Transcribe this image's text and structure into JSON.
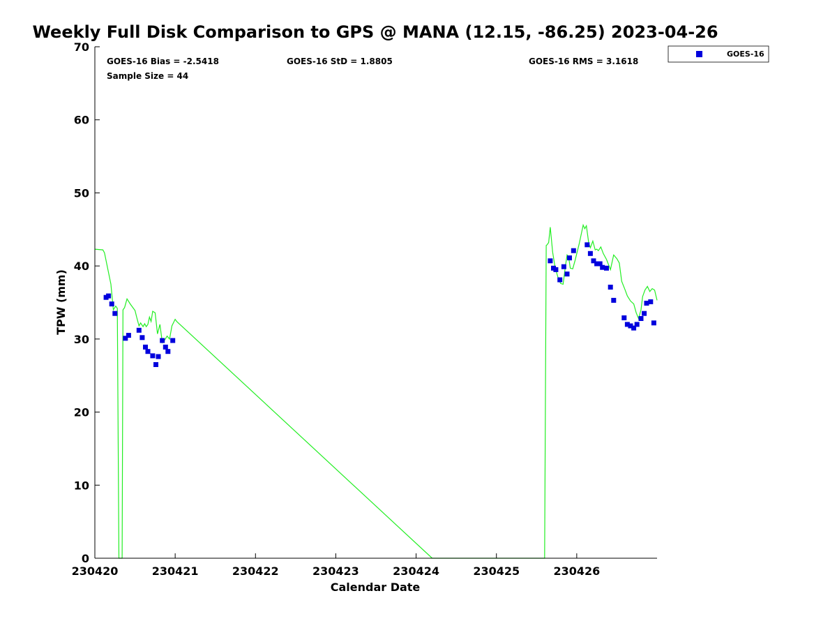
{
  "chart_data": {
    "type": "scatter",
    "title": "Weekly Full Disk Comparison to GPS @ MANA (12.15, -86.25) 2023-04-26",
    "xlabel": "Calendar Date",
    "ylabel": "TPW (mm)",
    "xlim": [
      0,
      7
    ],
    "ylim": [
      0,
      70
    ],
    "x_ticks": [
      0,
      1,
      2,
      3,
      4,
      5,
      6
    ],
    "x_tick_labels": [
      "230420",
      "230421",
      "230422",
      "230423",
      "230424",
      "230425",
      "230426"
    ],
    "y_ticks": [
      0,
      10,
      20,
      30,
      40,
      50,
      60,
      70
    ],
    "y_tick_labels": [
      "0",
      "10",
      "20",
      "30",
      "40",
      "50",
      "60",
      "70"
    ],
    "grid": false,
    "legend_position": "outside-top-right",
    "stats": {
      "bias": "GOES-16 Bias = -2.5418",
      "std": "GOES-16 StD = 1.8805",
      "rms": "GOES-16 RMS = 3.1618",
      "sample": "Sample Size = 44"
    },
    "series": [
      {
        "name": "GOES-16",
        "color": "#0000dd",
        "marker": "square",
        "x": [
          0.14,
          0.17,
          0.21,
          0.25,
          0.38,
          0.42,
          0.55,
          0.59,
          0.63,
          0.66,
          0.72,
          0.76,
          0.79,
          0.84,
          0.88,
          0.91,
          0.97,
          5.67,
          5.71,
          5.74,
          5.79,
          5.84,
          5.88,
          5.91,
          5.96,
          6.13,
          6.17,
          6.21,
          6.25,
          6.29,
          6.32,
          6.37,
          6.42,
          6.46,
          6.59,
          6.63,
          6.67,
          6.71,
          6.75,
          6.8,
          6.84,
          6.87,
          6.92,
          6.96
        ],
        "y": [
          35.7,
          35.9,
          34.8,
          33.5,
          30.1,
          30.5,
          31.2,
          30.2,
          28.9,
          28.3,
          27.7,
          26.5,
          27.6,
          29.8,
          28.9,
          28.3,
          29.8,
          40.7,
          39.7,
          39.5,
          38.1,
          39.9,
          38.9,
          41.1,
          42.1,
          42.9,
          41.7,
          40.7,
          40.3,
          40.3,
          39.8,
          39.7,
          37.1,
          35.3,
          32.9,
          32.0,
          31.8,
          31.5,
          32.0,
          32.8,
          33.5,
          34.9,
          35.1,
          32.2
        ]
      },
      {
        "name": "",
        "color": "#22ee22",
        "marker": "line",
        "x": [
          0.0,
          0.1,
          0.12,
          0.2,
          0.23,
          0.26,
          0.28,
          0.3,
          0.31,
          0.32,
          0.33,
          0.34,
          0.35,
          0.37,
          0.4,
          0.44,
          0.5,
          0.52,
          0.55,
          0.57,
          0.6,
          0.62,
          0.64,
          0.66,
          0.68,
          0.7,
          0.72,
          0.75,
          0.78,
          0.81,
          0.84,
          0.86,
          0.9,
          0.93,
          0.96,
          1.0,
          1.02,
          4.2,
          5.6,
          5.62,
          5.63,
          5.65,
          5.67,
          5.7,
          5.73,
          5.77,
          5.8,
          5.83,
          5.86,
          5.88,
          5.9,
          5.92,
          5.95,
          5.98,
          6.03,
          6.08,
          6.1,
          6.12,
          6.15,
          6.17,
          6.2,
          6.23,
          6.25,
          6.27,
          6.3,
          6.33,
          6.37,
          6.42,
          6.46,
          6.5,
          6.53,
          6.56,
          6.6,
          6.63,
          6.67,
          6.71,
          6.74,
          6.77,
          6.8,
          6.82,
          6.85,
          6.88,
          6.91,
          6.94,
          6.97,
          7.0
        ],
        "y": [
          42.3,
          42.2,
          41.8,
          37.5,
          34.0,
          34.5,
          34.2,
          0.0,
          0.0,
          0.0,
          0.0,
          0.0,
          34.0,
          34.3,
          35.5,
          34.8,
          33.9,
          33.0,
          31.8,
          32.2,
          31.7,
          32.1,
          31.7,
          32.0,
          33.0,
          32.4,
          33.8,
          33.6,
          30.7,
          32.0,
          29.5,
          29.7,
          30.4,
          30.0,
          31.8,
          32.7,
          32.4,
          0.0,
          0.0,
          42.8,
          42.9,
          43.2,
          45.3,
          41.9,
          39.8,
          38.3,
          37.6,
          37.5,
          40.0,
          41.5,
          41.2,
          39.7,
          39.6,
          40.8,
          43.0,
          45.6,
          45.1,
          45.5,
          43.1,
          42.5,
          43.4,
          42.2,
          42.3,
          42.1,
          42.6,
          41.7,
          40.9,
          39.5,
          41.5,
          41.0,
          40.4,
          37.9,
          36.8,
          35.9,
          35.2,
          34.8,
          33.6,
          32.8,
          34.0,
          35.8,
          36.7,
          37.2,
          36.5,
          36.9,
          36.7,
          35.3
        ]
      }
    ]
  }
}
